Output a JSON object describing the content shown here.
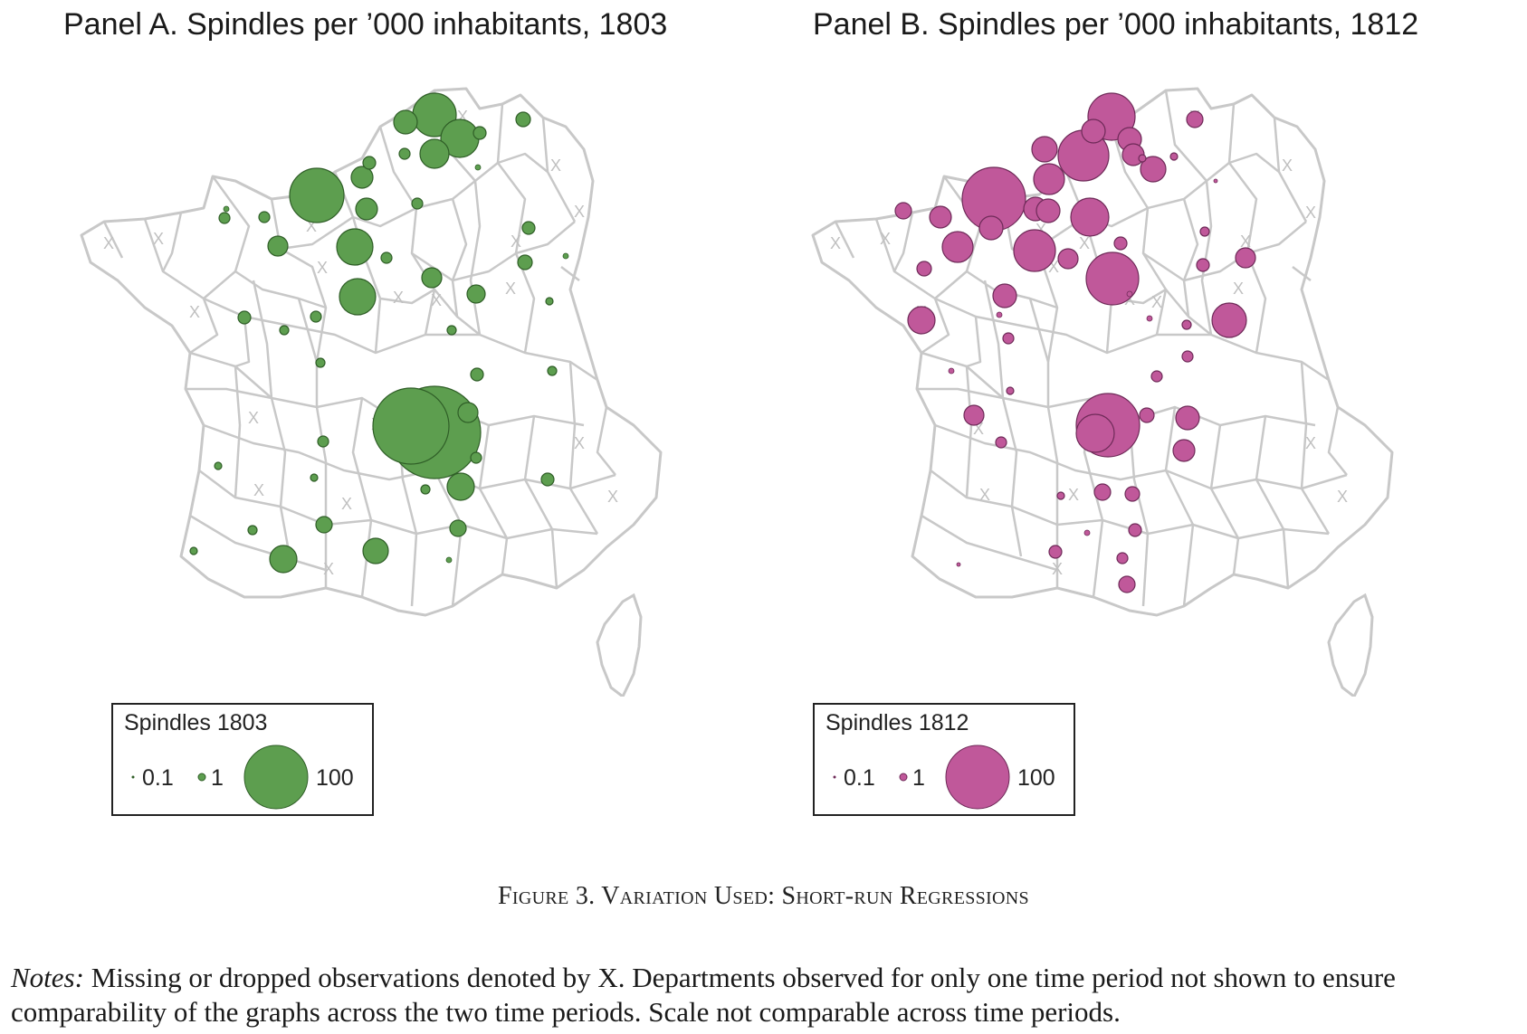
{
  "panels": [
    {
      "title": "Panel A. Spindles per ’000 inhabitants, 1803",
      "color": "#5d9e4f",
      "stroke": "#2f5e27",
      "legend": {
        "title": "Spindles 1803",
        "labels": [
          "0.1",
          "1",
          "100"
        ]
      }
    },
    {
      "title": "Panel B. Spindles per ’000 inhabitants, 1812",
      "color": "#c0589a",
      "stroke": "#6e2a58",
      "legend": {
        "title": "Spindles 1812",
        "labels": [
          "0.1",
          "1",
          "100"
        ]
      }
    }
  ],
  "missing_marker": "X",
  "figure_caption": "Figure 3. Variation Used: Short-run Regressions",
  "notes": {
    "lead": "Notes:",
    "text": " Missing or dropped observations denoted by X. Departments observed for only one time period not shown to ensure comparability of the graphs across the two time periods. Scale not comparable across time periods."
  }
}
